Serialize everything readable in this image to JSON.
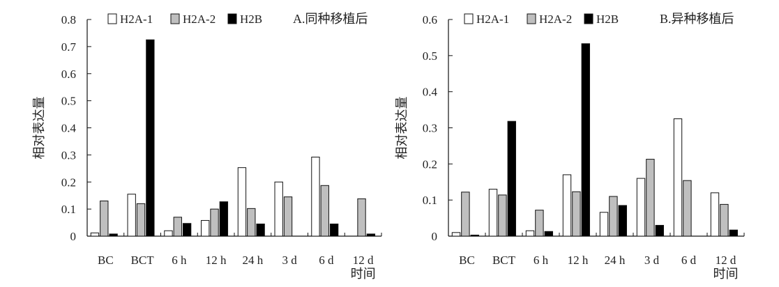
{
  "chart_data": [
    {
      "type": "bar",
      "title": "A.同种移植后",
      "xlabel": "时间",
      "ylabel": "相对表达量",
      "categories": [
        "BC",
        "BCT",
        "6 h",
        "12 h",
        "24 h",
        "3 d",
        "6 d",
        "12 d"
      ],
      "ylim": [
        0,
        0.8
      ],
      "yticks": [
        "0",
        "0.1",
        "0.2",
        "0.3",
        "0.4",
        "0.5",
        "0.6",
        "0.7",
        "0.8"
      ],
      "grid": false,
      "legend_position": "top",
      "series": [
        {
          "name": "H2A-1",
          "color": "#ffffff",
          "values": [
            0.012,
            0.155,
            0.02,
            0.058,
            0.253,
            0.2,
            0.292,
            0.0
          ]
        },
        {
          "name": "H2A-2",
          "color": "#bfbfbf",
          "values": [
            0.13,
            0.12,
            0.07,
            0.1,
            0.102,
            0.145,
            0.187,
            0.138
          ]
        },
        {
          "name": "H2B",
          "color": "#000000",
          "values": [
            0.008,
            0.725,
            0.047,
            0.127,
            0.045,
            0.0,
            0.045,
            0.008
          ]
        }
      ]
    },
    {
      "type": "bar",
      "title": "B.异种移植后",
      "xlabel": "时间",
      "ylabel": "相对表达量",
      "categories": [
        "BC",
        "BCT",
        "6 h",
        "12 h",
        "24 h",
        "3 d",
        "6 d",
        "12 d"
      ],
      "ylim": [
        0,
        0.6
      ],
      "yticks": [
        "0",
        "0.1",
        "0.2",
        "0.3",
        "0.4",
        "0.5",
        "0.6"
      ],
      "grid": false,
      "legend_position": "top",
      "series": [
        {
          "name": "H2A-1",
          "color": "#ffffff",
          "values": [
            0.01,
            0.13,
            0.015,
            0.17,
            0.066,
            0.16,
            0.325,
            0.12
          ]
        },
        {
          "name": "H2A-2",
          "color": "#bfbfbf",
          "values": [
            0.122,
            0.114,
            0.072,
            0.123,
            0.11,
            0.213,
            0.154,
            0.088
          ]
        },
        {
          "name": "H2B",
          "color": "#000000",
          "values": [
            0.003,
            0.318,
            0.013,
            0.533,
            0.085,
            0.03,
            0.0,
            0.017
          ]
        }
      ]
    }
  ]
}
